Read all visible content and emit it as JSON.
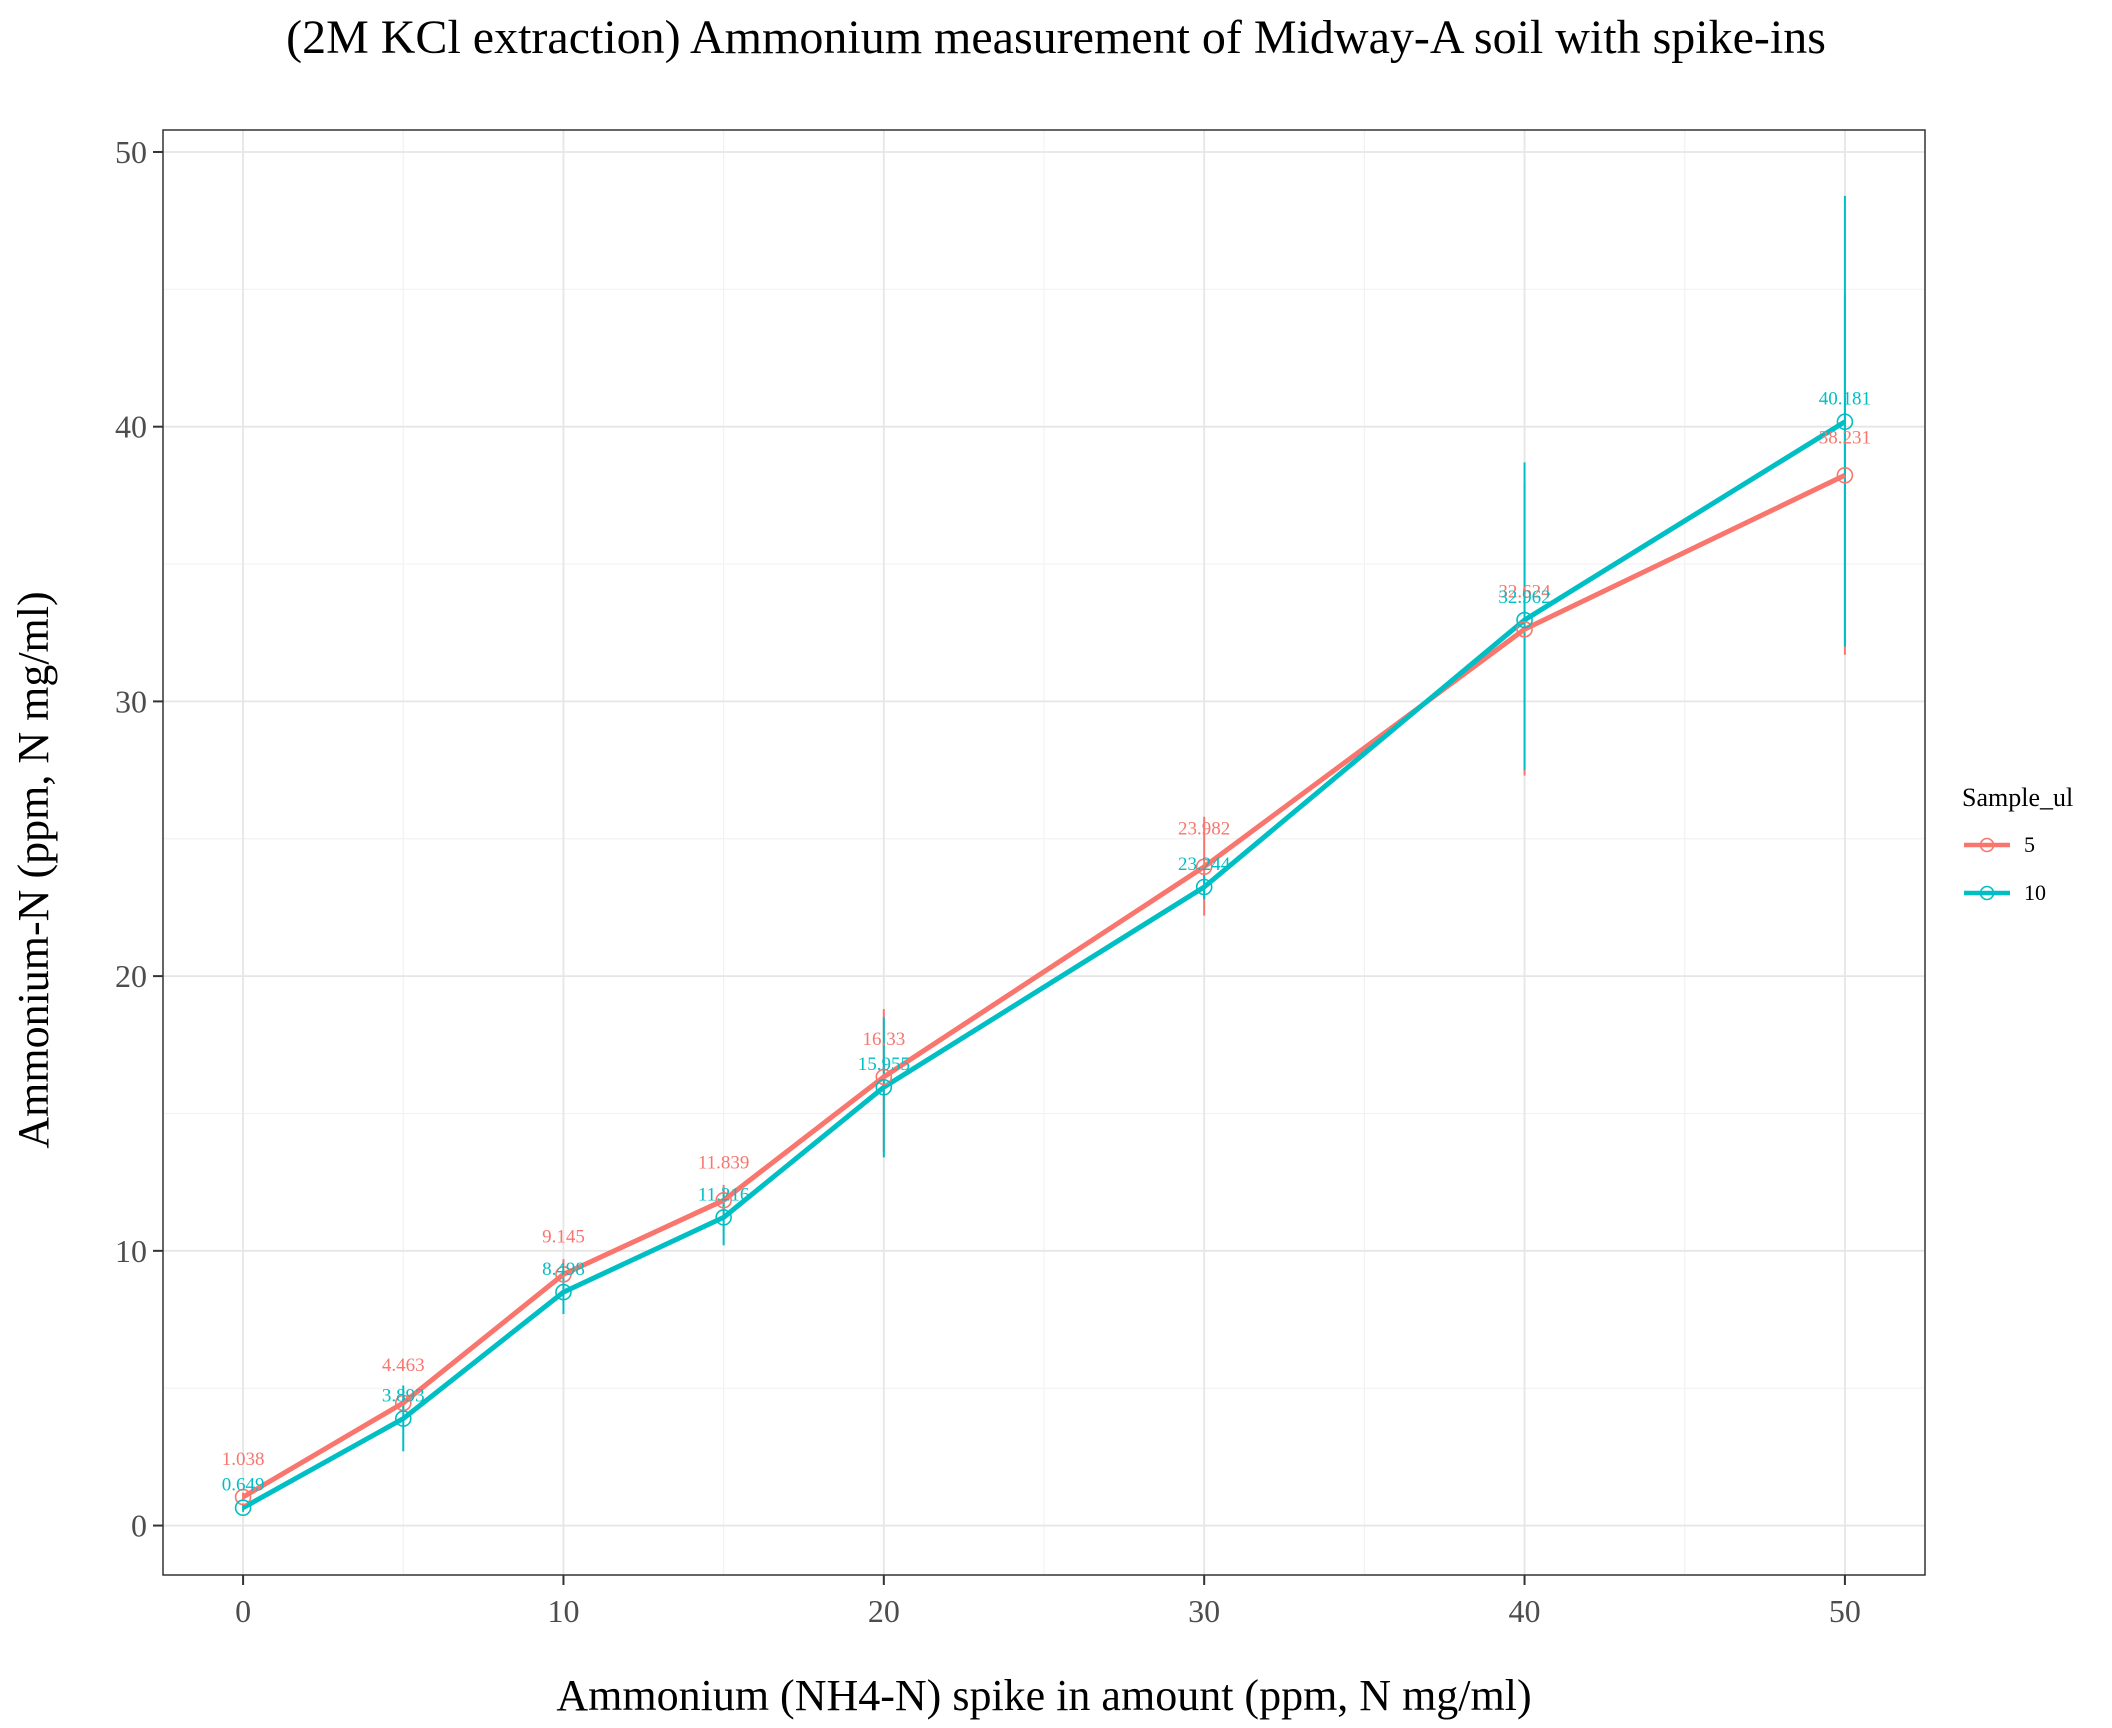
{
  "chart_data": {
    "type": "line",
    "title": "(2M KCl extraction) Ammonium measurement of Midway-A soil with spike-ins",
    "xlabel": "Ammonium (NH4-N) spike in amount (ppm, N mg/ml)",
    "ylabel": "Ammonium-N (ppm, N mg/ml)",
    "xlim": [
      -2.5,
      52.5
    ],
    "ylim": [
      -1.8,
      50.8
    ],
    "x_ticks": [
      0,
      10,
      20,
      30,
      40,
      50
    ],
    "y_ticks": [
      0,
      10,
      20,
      30,
      40,
      50
    ],
    "grid": true,
    "x": [
      0,
      5,
      10,
      15,
      20,
      30,
      40,
      50
    ],
    "legend": {
      "title": "Sample_ul",
      "position": "right"
    },
    "series": [
      {
        "name": "5",
        "color": "#F8766D",
        "values": [
          1.038,
          4.463,
          9.145,
          11.839,
          16.33,
          23.982,
          32.624,
          38.231
        ],
        "labels": [
          "1.038",
          "4.463",
          "9.145",
          "11.839",
          "16.33",
          "23.982",
          "32.624",
          "38.231"
        ],
        "error_low": [
          0.9,
          4.2,
          8.6,
          11.3,
          13.6,
          22.2,
          27.3,
          31.7
        ],
        "error_high": [
          1.2,
          4.7,
          9.7,
          12.4,
          18.8,
          25.8,
          37.9,
          44.8
        ]
      },
      {
        "name": "10",
        "color": "#00BFC4",
        "values": [
          0.649,
          3.893,
          8.498,
          11.216,
          15.955,
          23.244,
          32.962,
          40.181
        ],
        "labels": [
          "0.649",
          "3.893",
          "8.498",
          "11.216",
          "15.955",
          "23.244",
          "32.962",
          "40.181"
        ],
        "error_low": [
          0.5,
          2.7,
          7.7,
          10.2,
          13.4,
          22.8,
          27.5,
          32.0
        ],
        "error_high": [
          0.8,
          5.1,
          9.3,
          12.2,
          18.5,
          23.7,
          38.7,
          48.4
        ]
      }
    ]
  }
}
